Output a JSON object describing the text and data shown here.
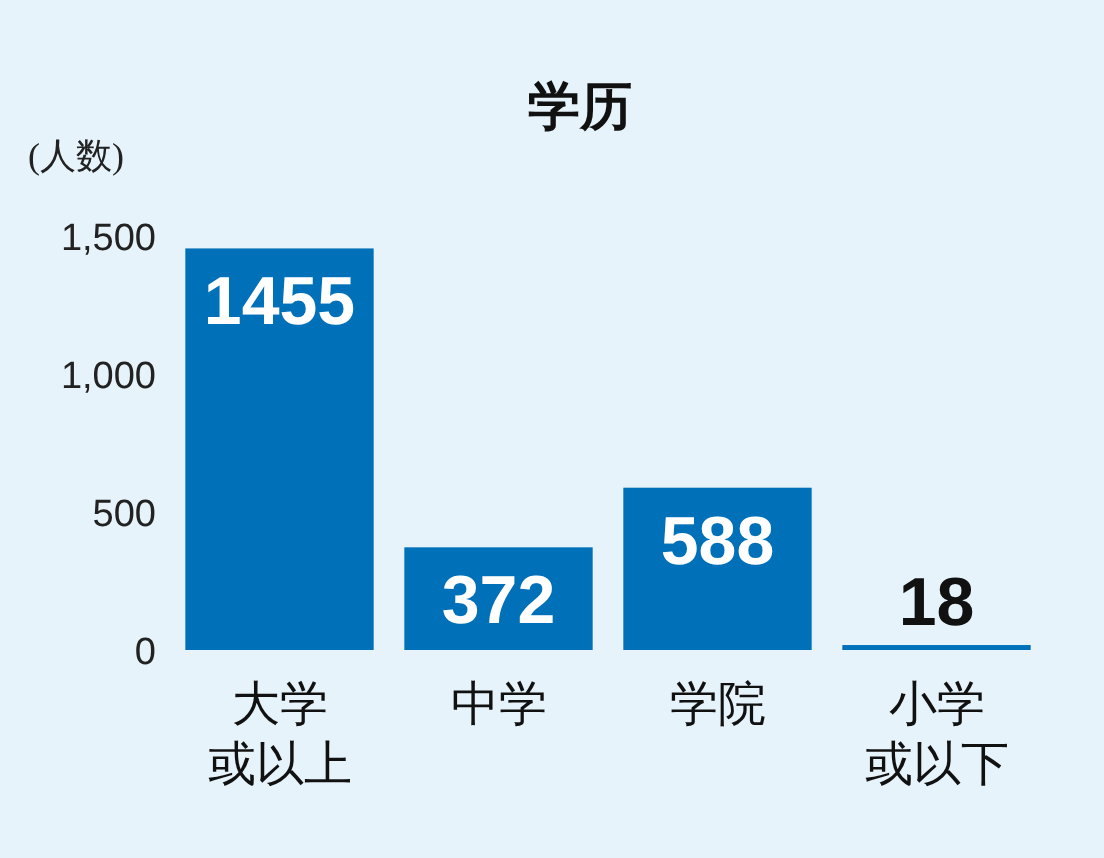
{
  "chart_data": {
    "type": "bar",
    "title": "学历",
    "ylabel": "(人数)",
    "categories": [
      "大学或以上",
      "中学",
      "学院",
      "小学或以下"
    ],
    "values": [
      1455,
      372,
      588,
      18
    ],
    "color": "#0070b8",
    "ylim": [
      0,
      1500
    ],
    "yticks": [
      0,
      500,
      {
        "value": 1000,
        "label": "1,000"
      },
      {
        "value": 1500,
        "label": "1,500"
      }
    ],
    "data_labels": true,
    "grid": false
  }
}
